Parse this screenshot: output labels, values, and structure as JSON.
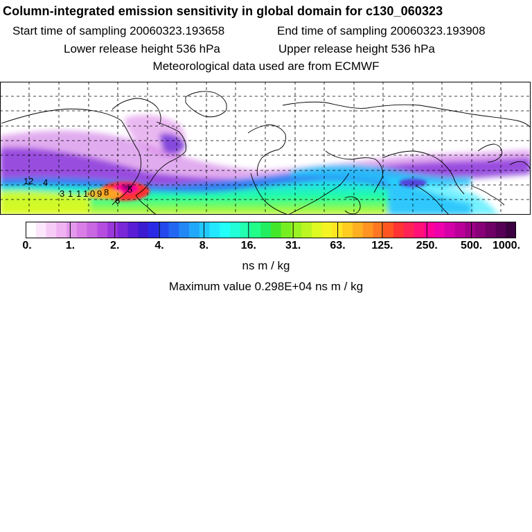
{
  "header": {
    "title": "Column-integrated emission sensitivity in global domain for c130_060323",
    "start_sampling": "Start time of sampling 20060323.193658",
    "end_sampling": "End time of sampling 20060323.193908",
    "lower_release": "Lower release height  536 hPa",
    "upper_release": "Upper release height  536 hPa",
    "met_data": "Meteorological data used are from ECMWF"
  },
  "map": {
    "trajectory_labels": [
      "12",
      "4",
      "3",
      "1",
      "1",
      "1",
      "0",
      "9",
      "8",
      "6",
      "5"
    ]
  },
  "colorbar": {
    "tick_labels": [
      "0.",
      "1.",
      "2.",
      "4.",
      "8.",
      "16.",
      "31.",
      "63.",
      "125.",
      "250.",
      "500.",
      "1000."
    ],
    "colors": [
      "#ffffff",
      "#fce6fc",
      "#f6ccf6",
      "#f0b2f0",
      "#e498ec",
      "#d87ee6",
      "#c966e2",
      "#b54ee0",
      "#9b38dc",
      "#7a28d8",
      "#5a1ed4",
      "#3c1cd0",
      "#2a2ae6",
      "#2548ee",
      "#2266f2",
      "#2288f6",
      "#22a8fa",
      "#22c8fc",
      "#22e8ff",
      "#22fff8",
      "#22ffd8",
      "#22ffb0",
      "#22ff88",
      "#22ee60",
      "#44e62a",
      "#77ee22",
      "#99f222",
      "#bbf622",
      "#ddfa22",
      "#f4f422",
      "#ffe622",
      "#ffcc22",
      "#ffb022",
      "#ff9422",
      "#ff7722",
      "#ff5522",
      "#ff3333",
      "#ff2255",
      "#ff1177",
      "#ff0099",
      "#ee00aa",
      "#d400a8",
      "#bb0099",
      "#a00088",
      "#880077",
      "#6e0066",
      "#550055",
      "#3c0040"
    ],
    "units": "ns m / kg"
  },
  "footer": {
    "max_value": "Maximum value  0.298E+04 ns m / kg"
  }
}
